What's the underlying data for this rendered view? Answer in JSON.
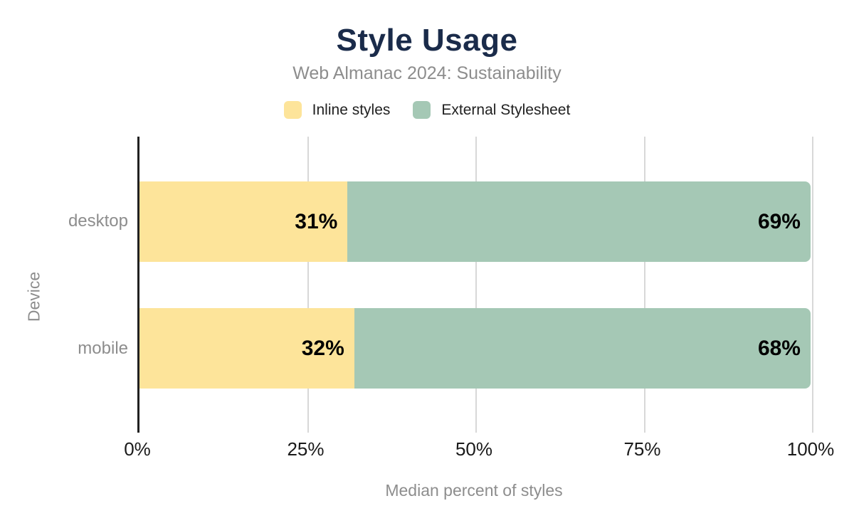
{
  "header": {
    "title": "Style Usage",
    "subtitle": "Web Almanac 2024: Sustainability"
  },
  "chart_data": {
    "type": "bar",
    "orientation": "horizontal",
    "stacked": true,
    "title": "Style Usage",
    "subtitle": "Web Almanac 2024: Sustainability",
    "categories": [
      "desktop",
      "mobile"
    ],
    "series": [
      {
        "name": "Inline styles",
        "color": "#fde49a",
        "values": [
          31,
          32
        ]
      },
      {
        "name": "External Stylesheet",
        "color": "#a5c8b5",
        "values": [
          69,
          68
        ]
      }
    ],
    "xlabel": "Median percent of styles",
    "ylabel": "Device",
    "xlim": [
      0,
      100
    ],
    "xtick_labels": [
      "0%",
      "25%",
      "50%",
      "75%",
      "100%"
    ],
    "xtick_values": [
      0,
      25,
      50,
      75,
      100
    ],
    "grid": "vertical",
    "legend_position": "top",
    "value_label_suffix": "%"
  },
  "colors": {
    "title": "#1a2b4a",
    "muted_text": "#8d8d8d",
    "tick_text": "#1a1a1a",
    "gridline": "#d8d8d8",
    "axis_line": "#212121",
    "background": "#ffffff"
  }
}
